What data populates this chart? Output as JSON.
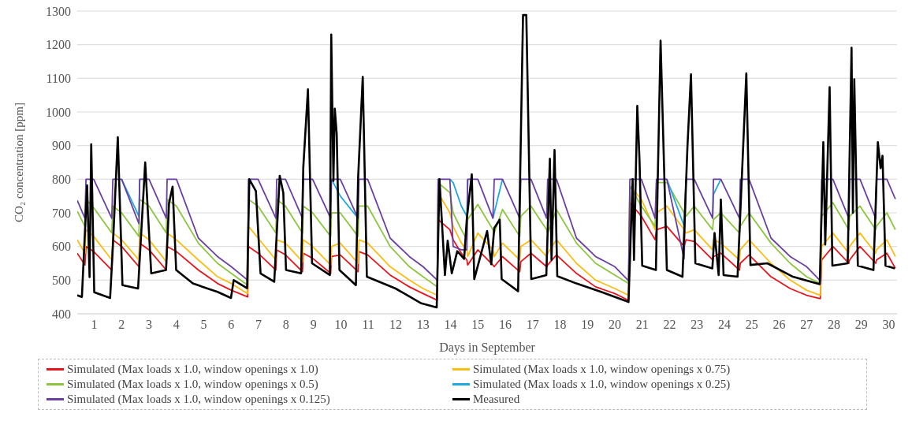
{
  "chart_data": {
    "type": "line",
    "xlabel": "Days in September",
    "ylabel": "CO₂ concentration [ppm]",
    "xlim": [
      0.38,
      30.3
    ],
    "xticks": [
      1,
      2,
      3,
      4,
      5,
      6,
      7,
      8,
      9,
      10,
      11,
      12,
      13,
      14,
      15,
      16,
      17,
      18,
      19,
      20,
      21,
      22,
      23,
      24,
      25,
      26,
      27,
      28,
      29,
      30
    ],
    "ylim": [
      400,
      1300
    ],
    "yticks": [
      400,
      500,
      600,
      700,
      800,
      900,
      1000,
      1100,
      1200,
      1300
    ],
    "grid": "y",
    "legend": "bottom",
    "marker": "none",
    "line_style": "solid",
    "x": [
      0.38,
      0.66,
      0.7,
      0.98,
      1.64,
      1.68,
      2.0,
      2.63,
      2.66,
      3.0,
      3.63,
      3.66,
      4.0,
      4.8,
      5.5,
      6.0,
      6.6,
      6.63,
      6.98,
      7.63,
      7.66,
      7.98,
      8.6,
      8.63,
      8.97,
      9.63,
      9.66,
      9.98,
      10.63,
      10.66,
      10.98,
      11.8,
      12.5,
      13.0,
      13.52,
      13.55,
      13.98,
      14.1,
      14.4,
      14.6,
      14.63,
      15.0,
      15.55,
      15.6,
      15.9,
      16.53,
      16.57,
      16.94,
      17.51,
      17.55,
      17.87,
      18.6,
      19.3,
      20.0,
      20.5,
      20.55,
      20.97,
      21.47,
      21.52,
      21.9,
      22.53,
      22.6,
      22.9,
      23.57,
      23.6,
      23.87,
      24.55,
      24.58,
      24.9,
      25.7,
      26.4,
      27.0,
      27.5,
      27.55,
      27.96,
      28.54,
      28.57,
      28.95,
      29.52,
      29.55,
      29.93,
      30.24
    ],
    "series": [
      {
        "name": "Simulated (Max loads x 1.0, window openings x 1.0)",
        "color": "#e8141c",
        "values": [
          580,
          545,
          600,
          585,
          530,
          620,
          600,
          540,
          610,
          590,
          530,
          600,
          585,
          530,
          490,
          470,
          450,
          600,
          580,
          530,
          590,
          575,
          525,
          580,
          565,
          520,
          570,
          575,
          525,
          585,
          575,
          515,
          480,
          460,
          440,
          680,
          650,
          620,
          580,
          560,
          545,
          590,
          545,
          540,
          570,
          525,
          555,
          580,
          540,
          545,
          575,
          520,
          480,
          460,
          440,
          730,
          690,
          620,
          650,
          660,
          600,
          620,
          615,
          560,
          570,
          580,
          530,
          550,
          575,
          510,
          475,
          455,
          445,
          560,
          600,
          550,
          560,
          600,
          550,
          560,
          580,
          535
        ]
      },
      {
        "name": "Simulated (Max loads x 1.0, window openings x 0.75)",
        "color": "#fbbd12",
        "values": [
          620,
          580,
          650,
          630,
          560,
          640,
          620,
          560,
          640,
          620,
          555,
          640,
          620,
          560,
          510,
          490,
          460,
          660,
          625,
          560,
          620,
          610,
          555,
          620,
          600,
          545,
          600,
          610,
          550,
          620,
          610,
          540,
          500,
          475,
          455,
          760,
          700,
          660,
          610,
          590,
          570,
          640,
          590,
          570,
          610,
          560,
          600,
          620,
          570,
          580,
          620,
          550,
          500,
          475,
          455,
          780,
          740,
          650,
          700,
          720,
          650,
          640,
          650,
          590,
          620,
          610,
          560,
          590,
          620,
          550,
          500,
          470,
          455,
          600,
          640,
          580,
          600,
          640,
          580,
          590,
          620,
          570
        ]
      },
      {
        "name": "Simulated (Max loads x 1.0, window openings x 0.5)",
        "color": "#8cc63e",
        "values": [
          705,
          660,
          740,
          715,
          640,
          720,
          700,
          630,
          740,
          720,
          640,
          740,
          720,
          610,
          550,
          520,
          485,
          740,
          720,
          640,
          740,
          720,
          640,
          720,
          700,
          630,
          700,
          700,
          630,
          720,
          720,
          600,
          540,
          510,
          480,
          790,
          760,
          700,
          650,
          620,
          680,
          725,
          650,
          640,
          710,
          630,
          690,
          720,
          650,
          640,
          710,
          610,
          550,
          515,
          490,
          780,
          720,
          660,
          790,
          790,
          700,
          690,
          720,
          650,
          680,
          700,
          640,
          660,
          700,
          610,
          550,
          510,
          490,
          690,
          730,
          650,
          690,
          720,
          650,
          660,
          700,
          650
        ]
      },
      {
        "name": "Simulated (Max loads x 1.0, window openings x 0.25)",
        "color": "#1fa9df",
        "values": [
          null,
          null,
          null,
          null,
          null,
          null,
          800,
          690,
          800,
          null,
          null,
          null,
          null,
          null,
          null,
          null,
          null,
          null,
          null,
          null,
          null,
          null,
          null,
          null,
          null,
          null,
          800,
          750,
          684,
          null,
          null,
          null,
          null,
          null,
          null,
          null,
          800,
          790,
          720,
          690,
          800,
          null,
          684,
          700,
          800,
          null,
          null,
          null,
          null,
          null,
          null,
          null,
          null,
          null,
          null,
          null,
          null,
          null,
          null,
          800,
          661,
          800,
          null,
          684,
          755,
          800,
          null,
          null,
          null,
          null,
          null,
          null,
          null,
          null,
          null,
          null,
          null,
          null,
          null,
          null,
          null,
          null
        ]
      },
      {
        "name": "Simulated (Max loads x 1.0, window openings x 0.125)",
        "color": "#6a3fa0",
        "values": [
          737,
          684,
          800,
          800,
          684,
          800,
          800,
          668,
          800,
          800,
          684,
          800,
          800,
          625,
          570,
          540,
          500,
          800,
          800,
          684,
          800,
          800,
          684,
          800,
          800,
          684,
          800,
          800,
          684,
          800,
          800,
          625,
          570,
          540,
          500,
          800,
          800,
          600,
          590,
          590,
          800,
          800,
          684,
          800,
          800,
          684,
          800,
          800,
          684,
          800,
          800,
          625,
          570,
          540,
          498,
          800,
          800,
          684,
          800,
          800,
          563,
          800,
          800,
          684,
          800,
          800,
          684,
          800,
          800,
          625,
          570,
          540,
          498,
          800,
          800,
          684,
          800,
          800,
          684,
          800,
          800,
          741
        ]
      },
      {
        "name": "Measured",
        "color": "#000000",
        "x": [
          0.38,
          0.55,
          0.74,
          0.83,
          0.89,
          1.0,
          1.58,
          1.68,
          1.86,
          2.03,
          2.6,
          2.86,
          3.08,
          3.62,
          3.73,
          3.86,
          3.99,
          4.6,
          5.5,
          5.99,
          6.09,
          6.58,
          6.66,
          6.9,
          7.07,
          7.57,
          7.77,
          7.9,
          8.0,
          8.55,
          8.63,
          8.8,
          8.95,
          9.6,
          9.65,
          9.73,
          9.78,
          9.85,
          9.95,
          10.55,
          10.63,
          10.8,
          10.95,
          12.0,
          12.94,
          13.5,
          13.6,
          13.8,
          13.9,
          14.05,
          14.25,
          14.5,
          14.6,
          14.78,
          14.87,
          15.34,
          15.49,
          15.6,
          15.8,
          15.87,
          16.47,
          16.65,
          16.77,
          16.95,
          17.5,
          17.63,
          17.69,
          17.8,
          17.9,
          18.6,
          19.5,
          20.5,
          20.65,
          20.7,
          20.82,
          20.9,
          21.0,
          21.5,
          21.67,
          21.81,
          21.9,
          22.47,
          22.65,
          22.78,
          22.94,
          23.56,
          23.64,
          23.79,
          23.87,
          23.97,
          24.48,
          24.8,
          24.95,
          25.57,
          26.5,
          27.48,
          27.61,
          27.68,
          27.84,
          27.94,
          28.5,
          28.64,
          28.69,
          28.74,
          28.87,
          29.44,
          29.6,
          29.7,
          29.77,
          29.88,
          30.22
        ],
        "values": [
          455,
          450,
          782,
          509,
          904,
          464,
          447,
          600,
          925,
          485,
          475,
          850,
          520,
          530,
          729,
          778,
          530,
          490,
          465,
          447,
          500,
          476,
          800,
          765,
          520,
          495,
          810,
          760,
          530,
          520,
          835,
          1067,
          550,
          515,
          1230,
          795,
          1010,
          935,
          530,
          485,
          800,
          1104,
          510,
          475,
          431,
          419,
          800,
          515,
          617,
          520,
          586,
          563,
          684,
          815,
          503,
          646,
          547,
          655,
          680,
          503,
          467,
          1288,
          1288,
          503,
          515,
          861,
          560,
          887,
          512,
          490,
          465,
          435,
          800,
          560,
          1018,
          860,
          543,
          530,
          1212,
          800,
          530,
          510,
          895,
          1112,
          550,
          535,
          640,
          515,
          740,
          515,
          510,
          1115,
          545,
          550,
          510,
          488,
          910,
          606,
          1074,
          543,
          550,
          1191,
          700,
          1097,
          543,
          530,
          910,
          833,
          870,
          543,
          535
        ]
      }
    ]
  }
}
